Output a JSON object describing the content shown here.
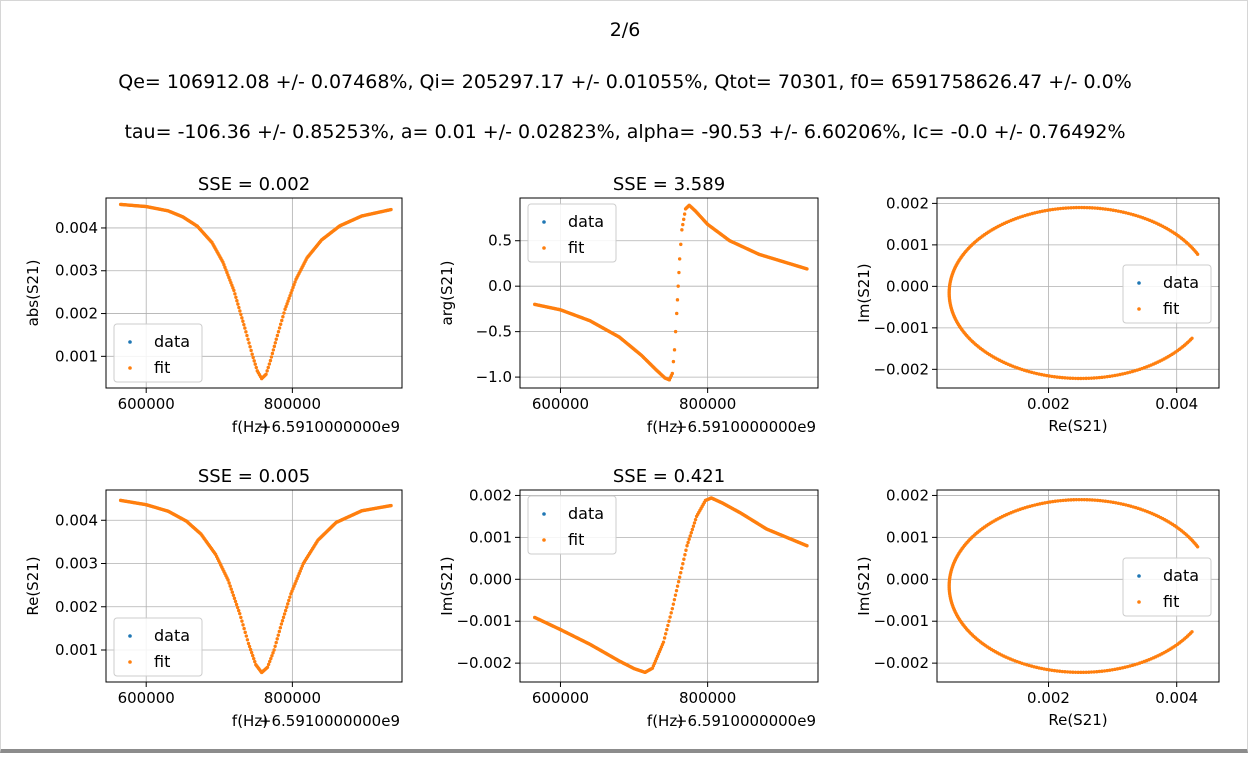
{
  "header": {
    "page": "2/6",
    "line1": "Qe= 106912.08 +/- 0.07468%,   Qi= 205297.17 +/- 0.01055%,   Qtot= 70301,   f0= 6591758626.47 +/- 0.0%",
    "line2": "tau= -106.36 +/- 0.85253%,   a= 0.01 +/- 0.02823%,   alpha= -90.53 +/- 6.60206%,   Ic= -0.0 +/- 0.76492%"
  },
  "colors": {
    "data": "#1f77b4",
    "fit": "#ff7f0e",
    "grid": "#b0b0b0"
  },
  "chart_data": [
    {
      "type": "scatter",
      "title": "SSE = 0.002",
      "xlabel": "f(Hz)",
      "ylabel": "abs(S21)",
      "x_offset_label": "+6.5910000000e9",
      "xlim": [
        545000,
        950000
      ],
      "ylim": [
        0.00026,
        0.0047
      ],
      "xticks": [
        600000,
        800000
      ],
      "xtick_labels": [
        "600000",
        "800000"
      ],
      "yticks": [
        0.001,
        0.002,
        0.003,
        0.004
      ],
      "ytick_labels": [
        "0.001",
        "0.002",
        "0.003",
        "0.004"
      ],
      "legend": [
        "data",
        "fit"
      ],
      "legend_loc": "lower left",
      "grid": true,
      "series": [
        {
          "name": "data"
        },
        {
          "name": "fit"
        }
      ]
    },
    {
      "type": "scatter",
      "title": "SSE = 3.589",
      "xlabel": "f(Hz)",
      "ylabel": "arg(S21)",
      "x_offset_label": "+6.5910000000e9",
      "xlim": [
        545000,
        950000
      ],
      "ylim": [
        -1.12,
        0.97
      ],
      "xticks": [
        600000,
        800000
      ],
      "xtick_labels": [
        "600000",
        "800000"
      ],
      "yticks": [
        -1.0,
        -0.5,
        0.0,
        0.5
      ],
      "ytick_labels": [
        "−1.0",
        "−0.5",
        "0.0",
        "0.5"
      ],
      "legend": [
        "data",
        "fit"
      ],
      "legend_loc": "upper left",
      "grid": true,
      "series": [
        {
          "name": "data"
        },
        {
          "name": "fit"
        }
      ]
    },
    {
      "type": "scatter",
      "title": "",
      "xlabel": "Re(S21)",
      "ylabel": "Im(S21)",
      "xlim": [
        0.00026,
        0.00466
      ],
      "ylim": [
        -0.00245,
        0.00213
      ],
      "xticks": [
        0.002,
        0.004
      ],
      "xtick_labels": [
        "0.002",
        "0.004"
      ],
      "yticks": [
        -0.002,
        -0.001,
        0.0,
        0.001,
        0.002
      ],
      "ytick_labels": [
        "−0.002",
        "−0.001",
        "0.000",
        "0.001",
        "0.002"
      ],
      "legend": [
        "data",
        "fit"
      ],
      "legend_loc": "center right",
      "grid": true,
      "series": [
        {
          "name": "data"
        },
        {
          "name": "fit"
        }
      ]
    },
    {
      "type": "scatter",
      "title": "SSE = 0.005",
      "xlabel": "f(Hz)",
      "ylabel": "Re(S21)",
      "x_offset_label": "+6.5910000000e9",
      "xlim": [
        545000,
        950000
      ],
      "ylim": [
        0.00026,
        0.0047
      ],
      "xticks": [
        600000,
        800000
      ],
      "xtick_labels": [
        "600000",
        "800000"
      ],
      "yticks": [
        0.001,
        0.002,
        0.003,
        0.004
      ],
      "ytick_labels": [
        "0.001",
        "0.002",
        "0.003",
        "0.004"
      ],
      "legend": [
        "data",
        "fit"
      ],
      "legend_loc": "lower left",
      "grid": true,
      "series": [
        {
          "name": "data"
        },
        {
          "name": "fit"
        }
      ]
    },
    {
      "type": "scatter",
      "title": "SSE = 0.421",
      "xlabel": "f(Hz)",
      "ylabel": "Im(S21)",
      "x_offset_label": "+6.5910000000e9",
      "xlim": [
        545000,
        950000
      ],
      "ylim": [
        -0.00245,
        0.00213
      ],
      "xticks": [
        600000,
        800000
      ],
      "xtick_labels": [
        "600000",
        "800000"
      ],
      "yticks": [
        -0.002,
        -0.001,
        0.0,
        0.001,
        0.002
      ],
      "ytick_labels": [
        "−0.002",
        "−0.001",
        "0.000",
        "0.001",
        "0.002"
      ],
      "legend": [
        "data",
        "fit"
      ],
      "legend_loc": "upper left",
      "grid": true,
      "series": [
        {
          "name": "data"
        },
        {
          "name": "fit"
        }
      ]
    },
    {
      "type": "scatter",
      "title": "",
      "xlabel": "Re(S21)",
      "ylabel": "Im(S21)",
      "xlim": [
        0.00026,
        0.00466
      ],
      "ylim": [
        -0.00245,
        0.00213
      ],
      "xticks": [
        0.002,
        0.004
      ],
      "xtick_labels": [
        "0.002",
        "0.004"
      ],
      "yticks": [
        -0.002,
        -0.001,
        0.0,
        0.001,
        0.002
      ],
      "ytick_labels": [
        "−0.002",
        "−0.001",
        "0.000",
        "0.001",
        "0.002"
      ],
      "legend": [
        "data",
        "fit"
      ],
      "legend_loc": "center right",
      "grid": true,
      "series": [
        {
          "name": "data"
        },
        {
          "name": "fit"
        }
      ]
    }
  ],
  "curves": {
    "abs": [
      [
        565000,
        0.00455
      ],
      [
        600000,
        0.0045
      ],
      [
        630000,
        0.0044
      ],
      [
        650000,
        0.00426
      ],
      [
        670000,
        0.00404
      ],
      [
        690000,
        0.00366
      ],
      [
        705000,
        0.0032
      ],
      [
        720000,
        0.00254
      ],
      [
        735000,
        0.00166
      ],
      [
        745000,
        0.00105
      ],
      [
        752000,
        0.00066
      ],
      [
        758000,
        0.00048
      ],
      [
        764000,
        0.00058
      ],
      [
        770000,
        0.0009
      ],
      [
        778000,
        0.0014
      ],
      [
        790000,
        0.0021
      ],
      [
        805000,
        0.0028
      ],
      [
        820000,
        0.0033
      ],
      [
        840000,
        0.00372
      ],
      [
        865000,
        0.00405
      ],
      [
        895000,
        0.00428
      ],
      [
        935000,
        0.00443
      ]
    ],
    "arg": [
      [
        565000,
        -0.2
      ],
      [
        600000,
        -0.26
      ],
      [
        640000,
        -0.38
      ],
      [
        680000,
        -0.56
      ],
      [
        710000,
        -0.76
      ],
      [
        730000,
        -0.92
      ],
      [
        742000,
        -1.01
      ],
      [
        748000,
        -1.03
      ],
      [
        752000,
        -0.96
      ],
      [
        755000,
        -0.7
      ],
      [
        758000,
        -0.3
      ],
      [
        760000,
        0.0
      ],
      [
        762000,
        0.3
      ],
      [
        765000,
        0.62
      ],
      [
        770000,
        0.85
      ],
      [
        775000,
        0.89
      ],
      [
        783000,
        0.83
      ],
      [
        800000,
        0.68
      ],
      [
        830000,
        0.5
      ],
      [
        870000,
        0.35
      ],
      [
        935000,
        0.19
      ]
    ],
    "re": [
      [
        565000,
        0.00446
      ],
      [
        600000,
        0.00436
      ],
      [
        630000,
        0.00421
      ],
      [
        655000,
        0.00398
      ],
      [
        675000,
        0.00368
      ],
      [
        695000,
        0.00321
      ],
      [
        712000,
        0.00262
      ],
      [
        728000,
        0.00184
      ],
      [
        740000,
        0.00115
      ],
      [
        750000,
        0.00066
      ],
      [
        758000,
        0.00048
      ],
      [
        766000,
        0.0006
      ],
      [
        775000,
        0.001
      ],
      [
        785000,
        0.0016
      ],
      [
        798000,
        0.0023
      ],
      [
        815000,
        0.003
      ],
      [
        835000,
        0.00354
      ],
      [
        860000,
        0.00395
      ],
      [
        895000,
        0.00422
      ],
      [
        935000,
        0.00434
      ]
    ],
    "im": [
      [
        565000,
        -0.00091
      ],
      [
        600000,
        -0.0012
      ],
      [
        640000,
        -0.00155
      ],
      [
        680000,
        -0.00195
      ],
      [
        700000,
        -0.00213
      ],
      [
        715000,
        -0.00222
      ],
      [
        725000,
        -0.00212
      ],
      [
        740000,
        -0.0015
      ],
      [
        752000,
        -0.0007
      ],
      [
        762000,
        5e-05
      ],
      [
        772000,
        0.0008
      ],
      [
        785000,
        0.0015
      ],
      [
        797000,
        0.00188
      ],
      [
        805000,
        0.00194
      ],
      [
        820000,
        0.00182
      ],
      [
        845000,
        0.00158
      ],
      [
        880000,
        0.0012
      ],
      [
        935000,
        0.0008
      ]
    ],
    "circle": {
      "cx": 0.0025,
      "cy": -0.00016,
      "rx": 0.00205,
      "ry": 0.00206,
      "arc_start_deg": 27,
      "arc_end_deg": 328
    }
  }
}
